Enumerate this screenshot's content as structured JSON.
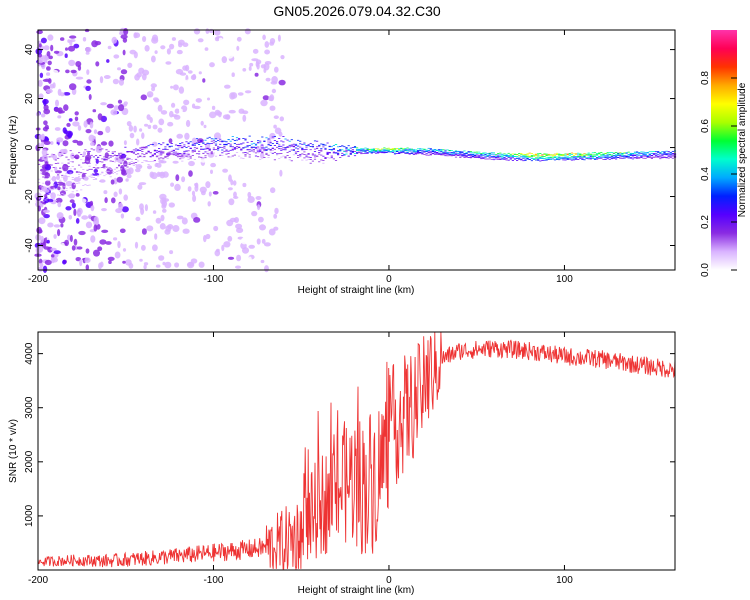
{
  "title": "GN05.2026.079.04.32.C30",
  "chart_data": [
    {
      "type": "heatmap",
      "title": "",
      "xlabel": "Height of straight line (km)",
      "ylabel": "Frequency (Hz)",
      "xlim": [
        -200,
        163
      ],
      "ylim": [
        -50,
        48
      ],
      "xticks": [
        -200,
        -100,
        0,
        100
      ],
      "yticks": [
        -40,
        -20,
        0,
        20,
        40
      ],
      "colorbar": {
        "label": "Normalized spectral amplitude",
        "range": [
          0.0,
          1.0
        ],
        "ticks": [
          0.0,
          0.2,
          0.4,
          0.6,
          0.8
        ],
        "colors": [
          "#ffffff",
          "#d9b3ff",
          "#8a2be2",
          "#5500ff",
          "#0020ff",
          "#00aaff",
          "#00ffcc",
          "#00ff33",
          "#aaff00",
          "#ffff00",
          "#ffaa00",
          "#ff3300",
          "#ff0055",
          "#ff33aa"
        ]
      },
      "band": [
        {
          "x": -200,
          "center": 0,
          "width": 45,
          "amplitude": 0.15
        },
        {
          "x": -140,
          "center": 0,
          "width": 10,
          "amplitude": 0.25
        },
        {
          "x": -100,
          "center": 4,
          "width": 12,
          "amplitude": 0.35
        },
        {
          "x": -60,
          "center": 4,
          "width": 14,
          "amplitude": 0.35
        },
        {
          "x": -40,
          "center": 2,
          "width": 14,
          "amplitude": 0.3
        },
        {
          "x": -25,
          "center": 0,
          "width": 4,
          "amplitude": 0.45
        },
        {
          "x": 0,
          "center": 0,
          "width": 4,
          "amplitude": 0.7
        },
        {
          "x": 20,
          "center": 0,
          "width": 5,
          "amplitude": 0.45
        },
        {
          "x": 60,
          "center": -2,
          "width": 5,
          "amplitude": 0.5
        },
        {
          "x": 85,
          "center": -2,
          "width": 6,
          "amplitude": 0.8
        },
        {
          "x": 110,
          "center": -2,
          "width": 5,
          "amplitude": 0.7
        },
        {
          "x": 163,
          "center": -1,
          "width": 6,
          "amplitude": 0.35
        }
      ]
    },
    {
      "type": "line",
      "title": "",
      "xlabel": "Height of straight line (km)",
      "ylabel": "SNR (10 * v/v)",
      "xlim": [
        -200,
        163
      ],
      "ylim": [
        0,
        4400
      ],
      "xticks": [
        -200,
        -100,
        0,
        100
      ],
      "yticks": [
        1000,
        2000,
        3000,
        4000
      ],
      "series": [
        {
          "name": "SNR",
          "color": "#ee3333",
          "x": [
            -200,
            -180,
            -160,
            -140,
            -120,
            -100,
            -80,
            -70,
            -60,
            -50,
            -45,
            -40,
            -35,
            -30,
            -25,
            -20,
            -15,
            -10,
            -5,
            0,
            5,
            10,
            15,
            20,
            25,
            30,
            40,
            60,
            80,
            100,
            120,
            140,
            163
          ],
          "y": [
            150,
            180,
            170,
            210,
            260,
            320,
            380,
            420,
            500,
            650,
            900,
            1200,
            1300,
            1500,
            1600,
            1700,
            1550,
            1650,
            1900,
            2400,
            2800,
            2900,
            3100,
            3400,
            3700,
            3900,
            4050,
            4100,
            4050,
            3950,
            3900,
            3800,
            3700
          ]
        }
      ]
    }
  ]
}
